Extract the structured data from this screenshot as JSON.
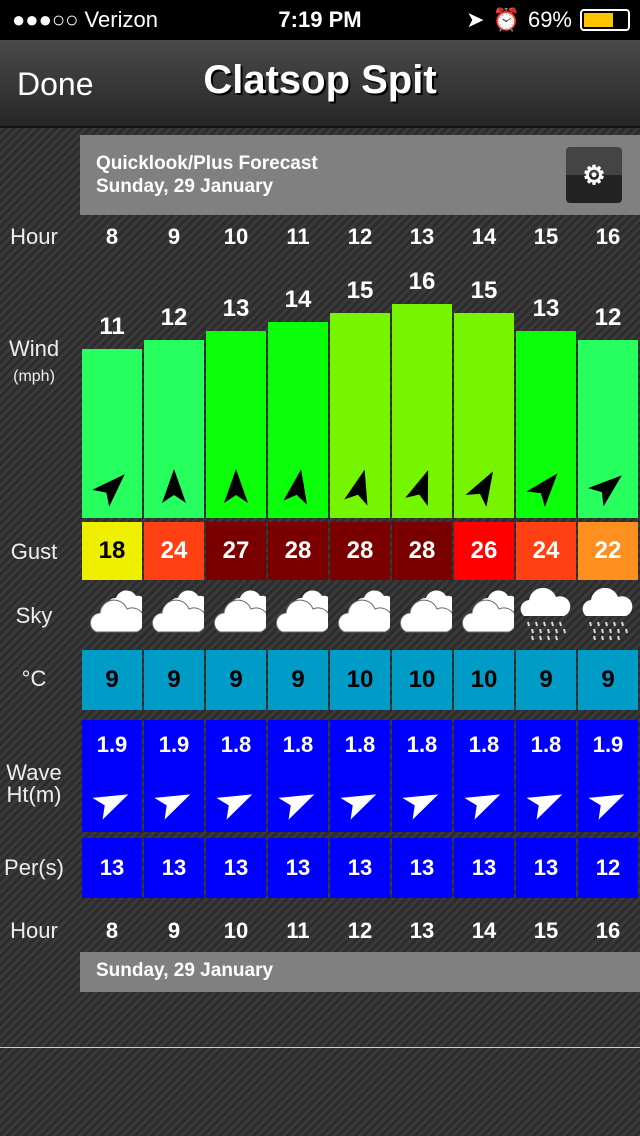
{
  "status_bar": {
    "carrier": "●●●○○ Verizon",
    "time": "7:19 PM",
    "battery": "69%",
    "battery_level": 0.69
  },
  "nav": {
    "done_label": "Done",
    "title": "Clatsop Spit"
  },
  "header": {
    "title": "Quicklook/Plus Forecast",
    "date": "Sunday, 29 January",
    "settings_icon": "gears-icon"
  },
  "labels": {
    "hour": "Hour",
    "wind": "Wind",
    "wind_unit": "(mph)",
    "gust": "Gust",
    "sky": "Sky",
    "temp": "°C",
    "wave": "Wave Ht(m)",
    "period": "Per(s)"
  },
  "hours": [
    "8",
    "9",
    "10",
    "11",
    "12",
    "13",
    "14",
    "15",
    "16"
  ],
  "wind": [
    {
      "speed": "11",
      "dir_deg": 45,
      "color": "#26ff5e"
    },
    {
      "speed": "12",
      "dir_deg": 0,
      "color": "#26ff5e"
    },
    {
      "speed": "13",
      "dir_deg": 0,
      "color": "#0bff0b"
    },
    {
      "speed": "14",
      "dir_deg": 10,
      "color": "#0bff0b"
    },
    {
      "speed": "15",
      "dir_deg": 15,
      "color": "#76f500"
    },
    {
      "speed": "16",
      "dir_deg": 20,
      "color": "#76f500"
    },
    {
      "speed": "15",
      "dir_deg": 30,
      "color": "#76f500"
    },
    {
      "speed": "13",
      "dir_deg": 40,
      "color": "#0bff0b"
    },
    {
      "speed": "12",
      "dir_deg": 50,
      "color": "#26ff5e"
    }
  ],
  "gust": [
    {
      "value": "18",
      "color": "#eef000",
      "text": "#000"
    },
    {
      "value": "24",
      "color": "#ff4013",
      "text": "#fff"
    },
    {
      "value": "27",
      "color": "#7a0000",
      "text": "#fff"
    },
    {
      "value": "28",
      "color": "#7a0000",
      "text": "#fff"
    },
    {
      "value": "28",
      "color": "#7a0000",
      "text": "#fff"
    },
    {
      "value": "28",
      "color": "#7a0000",
      "text": "#fff"
    },
    {
      "value": "26",
      "color": "#ff0000",
      "text": "#fff"
    },
    {
      "value": "24",
      "color": "#ff4013",
      "text": "#fff"
    },
    {
      "value": "22",
      "color": "#ff9020",
      "text": "#fff"
    }
  ],
  "sky": [
    "partly-cloudy-icon",
    "partly-cloudy-icon",
    "partly-cloudy-icon",
    "partly-cloudy-icon",
    "partly-cloudy-icon",
    "partly-cloudy-icon",
    "partly-cloudy-icon",
    "rain-icon",
    "rain-icon"
  ],
  "temp": [
    "9",
    "9",
    "9",
    "9",
    "10",
    "10",
    "10",
    "9",
    "9"
  ],
  "temp_color": "#009cc8",
  "wave": [
    {
      "ht": "1.9",
      "dir_deg": 65
    },
    {
      "ht": "1.9",
      "dir_deg": 65
    },
    {
      "ht": "1.8",
      "dir_deg": 65
    },
    {
      "ht": "1.8",
      "dir_deg": 65
    },
    {
      "ht": "1.8",
      "dir_deg": 65
    },
    {
      "ht": "1.8",
      "dir_deg": 65
    },
    {
      "ht": "1.8",
      "dir_deg": 65
    },
    {
      "ht": "1.8",
      "dir_deg": 65
    },
    {
      "ht": "1.9",
      "dir_deg": 65
    }
  ],
  "period": [
    "13",
    "13",
    "13",
    "13",
    "13",
    "13",
    "13",
    "13",
    "12"
  ],
  "wave_color": "#0000ff",
  "footer": {
    "date": "Sunday, 29 January"
  }
}
